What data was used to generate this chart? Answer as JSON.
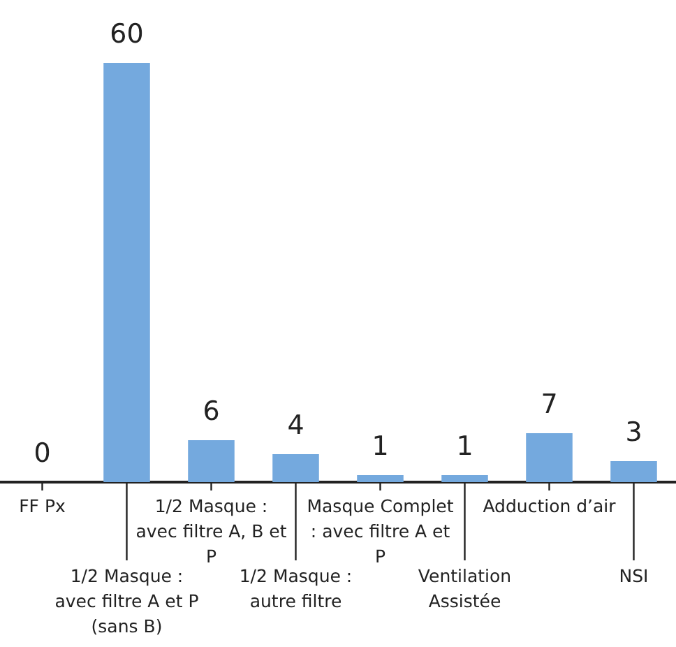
{
  "chart_data": {
    "type": "bar",
    "categories": [
      "FF Px",
      "1/2 Masque : avec filtre A et P (sans B)",
      "1/2 Masque : avec filtre A, B et P",
      "1/2 Masque : autre filtre",
      "Masque Complet : avec filtre A et P",
      "Ventilation Assistée",
      "Adduction d’air",
      "NSI"
    ],
    "values": [
      0,
      60,
      6,
      4,
      1,
      1,
      7,
      3
    ],
    "color": "#74a9de",
    "data_labels": true,
    "grid": false,
    "legend": false
  }
}
